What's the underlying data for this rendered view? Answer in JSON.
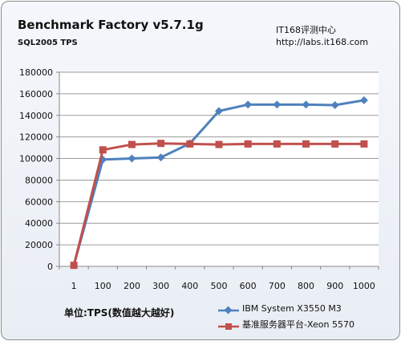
{
  "title": "Benchmark Factory v5.7.1g",
  "subtitle": "SQL2005 TPS",
  "source": {
    "line1": "IT168评测中心",
    "line2": "http://labs.it168.com"
  },
  "unit_note": "单位:TPS(数值越大越好)",
  "colors": {
    "series_blue": "#4f81bd",
    "series_red": "#c0504d"
  },
  "chart_data": {
    "type": "line",
    "categories": [
      "1",
      "100",
      "200",
      "300",
      "400",
      "500",
      "600",
      "700",
      "800",
      "900",
      "1000"
    ],
    "ylim": [
      0,
      180000
    ],
    "yticks": [
      0,
      20000,
      40000,
      60000,
      80000,
      100000,
      120000,
      140000,
      160000,
      180000
    ],
    "grid": true,
    "legend_position": "bottom-right",
    "series": [
      {
        "name": "IBM System X3550 M3",
        "marker": "diamond",
        "color": "#4f81bd",
        "values": [
          1000,
          99000,
          100000,
          101000,
          114000,
          144000,
          150000,
          150000,
          150000,
          149500,
          154000
        ]
      },
      {
        "name": "基准服务器平台-Xeon 5570",
        "marker": "square",
        "color": "#c0504d",
        "values": [
          1000,
          108000,
          113000,
          114000,
          113500,
          113000,
          113500,
          113500,
          113500,
          113500,
          113500
        ]
      }
    ]
  }
}
